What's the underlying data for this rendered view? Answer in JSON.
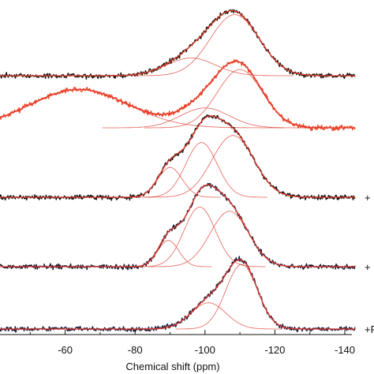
{
  "chart_data": {
    "type": "line",
    "title": "",
    "xlabel": "Chemical shift (ppm)",
    "ylabel": "",
    "xlim": [
      -40,
      -140
    ],
    "x_ticks": [
      -60,
      -80,
      -100,
      -120,
      -140
    ],
    "x_tick_labels": [
      "-60",
      "-80",
      "-100",
      "-120",
      "-140"
    ],
    "grid": false,
    "legend": "none",
    "noise_seeds": [
      11,
      23,
      37,
      51,
      67
    ],
    "spectra": [
      {
        "order": 1,
        "trace_color": "#1a1208",
        "fit_color": "#e03a2e",
        "side_label": "",
        "peaks": [
          {
            "center": -96.0,
            "height": 0.25,
            "width": 7.0
          },
          {
            "center": -108.5,
            "height": 0.86,
            "width": 7.0
          }
        ]
      },
      {
        "order": 2,
        "trace_color": "#f04a2a",
        "fit_color": "#e03a2e",
        "side_label": "",
        "peaks": [
          {
            "center": -64.0,
            "height": 0.54,
            "width": 14.0
          },
          {
            "center": -100.0,
            "height": 0.28,
            "width": 7.0
          },
          {
            "center": -110.0,
            "height": 0.82,
            "width": 6.5
          }
        ]
      },
      {
        "order": 3,
        "trace_color": "#14130f",
        "fit_color": "#e03a2e",
        "side_label": "+",
        "peaks": [
          {
            "center": -90.0,
            "height": 0.42,
            "width": 3.5
          },
          {
            "center": -99.0,
            "height": 0.77,
            "width": 4.5
          },
          {
            "center": -108.0,
            "height": 0.87,
            "width": 6.0
          }
        ]
      },
      {
        "order": 4,
        "trace_color": "#161830",
        "fit_color": "#e03a2e",
        "side_label": "+",
        "peaks": [
          {
            "center": -89.5,
            "height": 0.37,
            "width": 3.0
          },
          {
            "center": -98.5,
            "height": 0.84,
            "width": 4.5
          },
          {
            "center": -107.0,
            "height": 0.78,
            "width": 5.5
          }
        ]
      },
      {
        "order": 5,
        "trace_color": "#1e1a3a",
        "fit_color": "#e03a2e",
        "side_label": "+F",
        "peaks": [
          {
            "center": -101.0,
            "height": 0.37,
            "width": 5.0
          },
          {
            "center": -110.5,
            "height": 0.91,
            "width": 4.5
          }
        ]
      }
    ]
  }
}
